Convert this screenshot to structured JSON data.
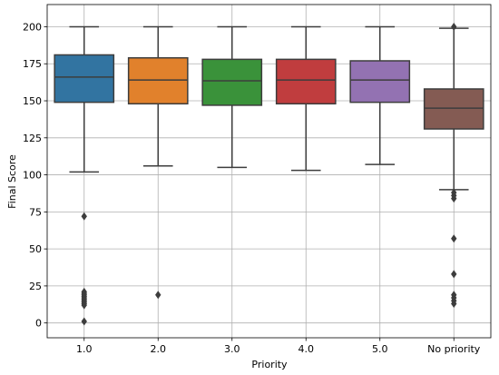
{
  "chart_data": {
    "type": "box",
    "xlabel": "Priority",
    "ylabel": "Final Score",
    "ylim": [
      -10,
      215
    ],
    "yticks": [
      0,
      25,
      50,
      75,
      100,
      125,
      150,
      175,
      200
    ],
    "grid": true,
    "categories": [
      "1.0",
      "2.0",
      "3.0",
      "4.0",
      "5.0",
      "No priority"
    ],
    "boxes": [
      {
        "category": "1.0",
        "color": "#3274a1",
        "whisker_low": 102,
        "q1": 149,
        "median": 166,
        "q3": 181,
        "whisker_high": 200,
        "outliers": [
          72,
          21,
          20,
          19,
          18,
          17,
          16,
          15,
          14,
          13,
          12,
          1
        ]
      },
      {
        "category": "2.0",
        "color": "#e1812c",
        "whisker_low": 106,
        "q1": 148,
        "median": 164,
        "q3": 179,
        "whisker_high": 200,
        "outliers": [
          19
        ]
      },
      {
        "category": "3.0",
        "color": "#3a923a",
        "whisker_low": 105,
        "q1": 147,
        "median": 163.5,
        "q3": 178,
        "whisker_high": 200,
        "outliers": []
      },
      {
        "category": "4.0",
        "color": "#c03d3e",
        "whisker_low": 103,
        "q1": 148,
        "median": 164,
        "q3": 178,
        "whisker_high": 200,
        "outliers": []
      },
      {
        "category": "5.0",
        "color": "#9372b2",
        "whisker_low": 107,
        "q1": 149,
        "median": 164,
        "q3": 177,
        "whisker_high": 200,
        "outliers": []
      },
      {
        "category": "No priority",
        "color": "#845b53",
        "whisker_low": 90,
        "q1": 131,
        "median": 145,
        "q3": 158,
        "whisker_high": 199,
        "outliers": [
          200,
          88,
          86,
          84,
          57,
          33,
          19,
          17,
          15,
          13
        ]
      }
    ]
  }
}
